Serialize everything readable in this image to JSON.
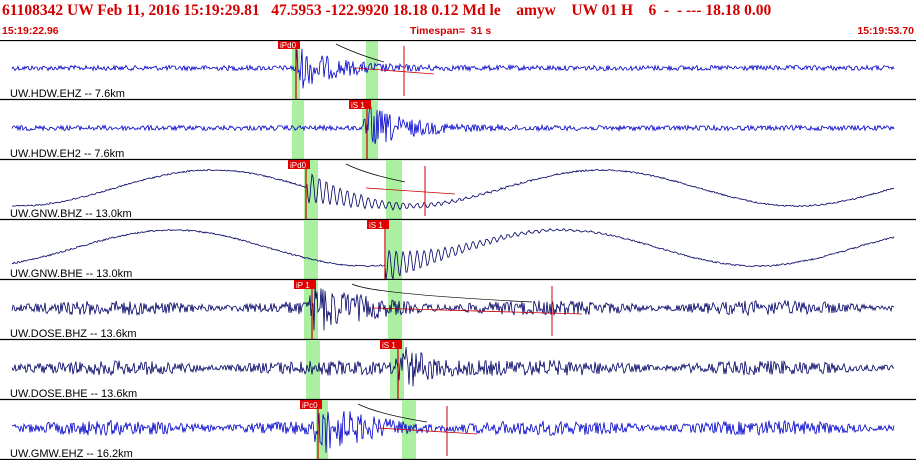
{
  "header": {
    "event_line": "61108342 UW Feb 11, 2016 15:19:29.81   47.5953 -122.9920 18.18 0.12 Md le    amyw    UW 01 H    6  -  - --- 18.18 0.00",
    "start_time": "15:19:22.96",
    "timespan": "Timespan=  31 s",
    "end_time": "15:19:53.70"
  },
  "colors": {
    "header_text": "#d40000",
    "trace_blue": "#0000cc",
    "trace_navy": "#000066",
    "pick_box": "#e00000",
    "window_green": "#aaf0a0",
    "pick_line": "#cc0000"
  },
  "traces": [
    {
      "label": "UW.HDW.EHZ -- 7.6km",
      "color": "trace_blue",
      "style": "noise",
      "pick": "iPd0",
      "pick_t": 296,
      "green": [
        292,
        300
      ],
      "green2": [
        366,
        378
      ],
      "marker_t": 404
    },
    {
      "label": "UW.HDW.EH2 -- 7.6km",
      "color": "trace_blue",
      "style": "noise",
      "pick": "iS 1",
      "pick_t": 367,
      "green": [
        292,
        304
      ],
      "green2": [
        362,
        378
      ],
      "marker_t": 0
    },
    {
      "label": "UW.GNW.BHZ -- 13.0km",
      "color": "trace_navy",
      "style": "wave",
      "pick": "iPd0",
      "pick_t": 306,
      "green": [
        304,
        318
      ],
      "green2": [
        386,
        402
      ],
      "marker_t": 425
    },
    {
      "label": "UW.GNW.BHE -- 13.0km",
      "color": "trace_navy",
      "style": "wave",
      "pick": "iS 1",
      "pick_t": 385,
      "green": [
        304,
        318
      ],
      "green2": [
        386,
        402
      ],
      "marker_t": 0
    },
    {
      "label": "UW.DOSE.BHZ -- 13.6km",
      "color": "trace_navy",
      "style": "noise",
      "pick": "iP 1",
      "pick_t": 312,
      "green": [
        304,
        318
      ],
      "green2": [
        388,
        402
      ],
      "marker_t": 552
    },
    {
      "label": "UW.DOSE.BHE -- 13.6km",
      "color": "trace_navy",
      "style": "noise",
      "pick": "iS 1",
      "pick_t": 398,
      "green": [
        306,
        320
      ],
      "green2": [
        390,
        404
      ],
      "marker_t": 0
    },
    {
      "label": "UW.GMW.EHZ -- 16.2km",
      "color": "trace_blue",
      "style": "noise",
      "pick": "iPc0",
      "pick_t": 318,
      "green": [
        316,
        328
      ],
      "green2": [
        402,
        416
      ],
      "marker_t": 447
    }
  ]
}
